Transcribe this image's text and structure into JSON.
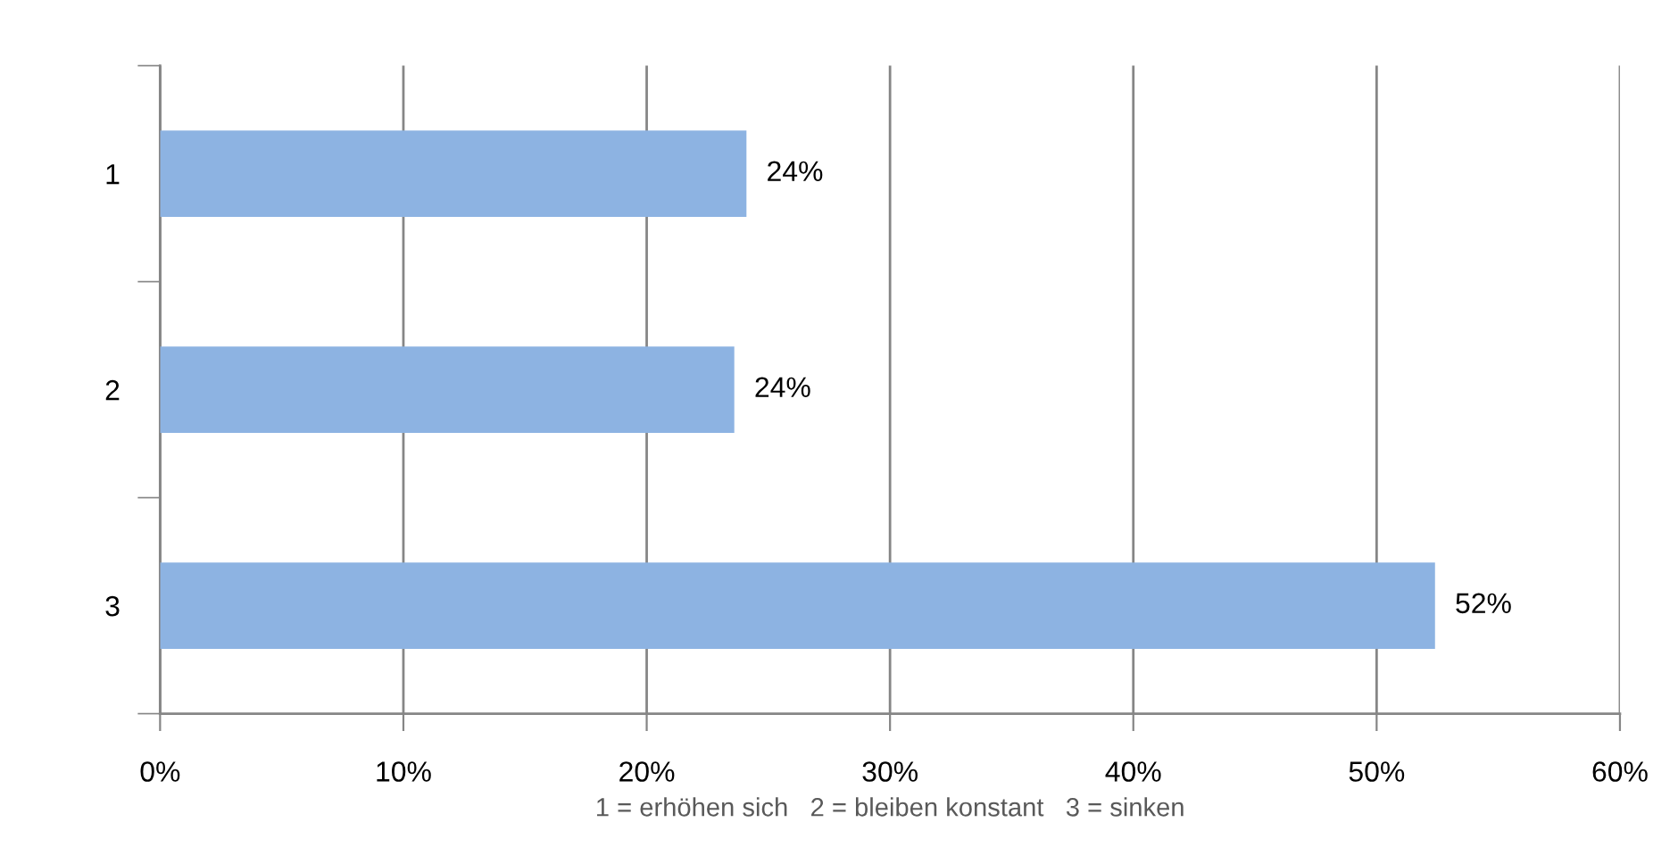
{
  "chart_data": {
    "type": "bar",
    "orientation": "horizontal",
    "categories": [
      "1",
      "2",
      "3"
    ],
    "values": [
      24.1,
      23.6,
      52.4
    ],
    "color": "#8db3e2",
    "value_labels": [
      "24%",
      "24%",
      "52%"
    ],
    "xlim": [
      0,
      60
    ],
    "xticks": [
      {
        "value": 0,
        "label": "0%"
      },
      {
        "value": 10,
        "label": "10%"
      },
      {
        "value": 20,
        "label": "20%"
      },
      {
        "value": 30,
        "label": "30%"
      },
      {
        "value": 40,
        "label": "40%"
      },
      {
        "value": 50,
        "label": "50%"
      },
      {
        "value": 60,
        "label": "60%"
      }
    ],
    "xlabel": "1 = erhöhen sich   2 = bleiben konstant   3 = sinken",
    "grid": "x"
  }
}
